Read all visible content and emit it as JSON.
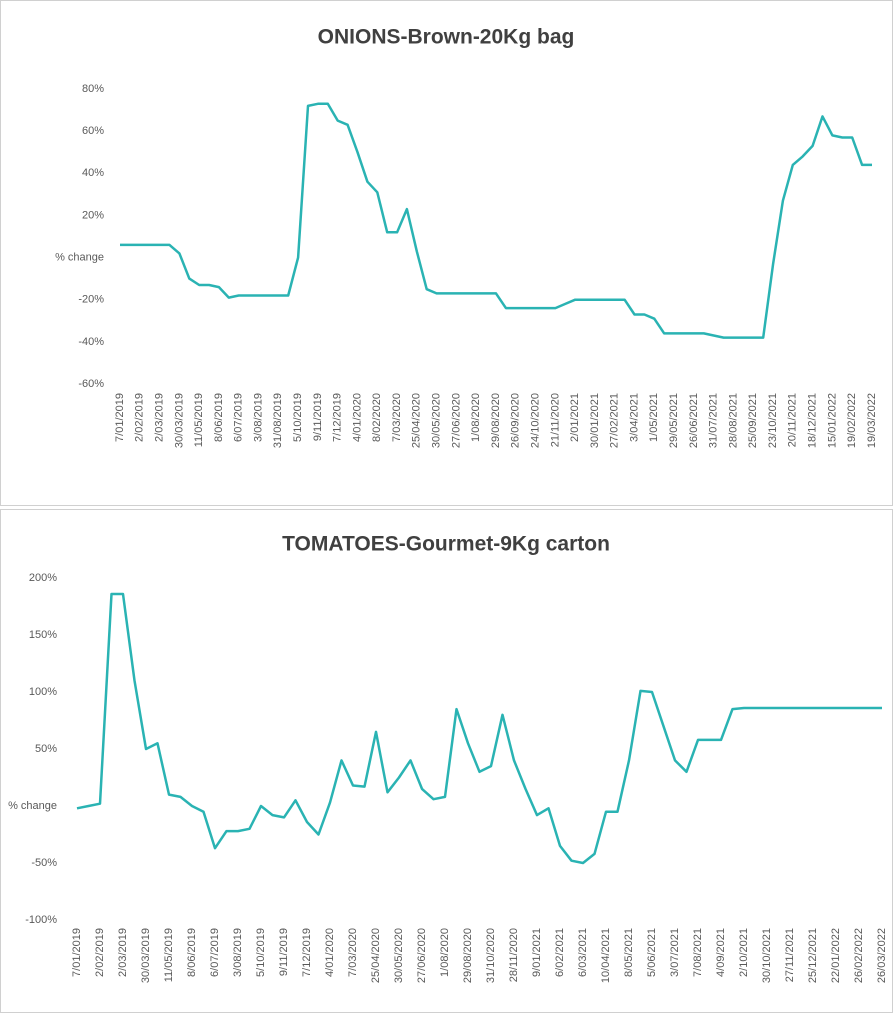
{
  "chart_data": [
    {
      "type": "line",
      "title": "ONIONS-Brown-20Kg bag",
      "color": "#2ab3b3",
      "ylim": [
        -60,
        80
      ],
      "yticks": [
        {
          "value": -60,
          "label": "-60%"
        },
        {
          "value": -40,
          "label": "-40%"
        },
        {
          "value": -20,
          "label": "-20%"
        },
        {
          "value": 0,
          "label": "% change"
        },
        {
          "value": 20,
          "label": "20%"
        },
        {
          "value": 40,
          "label": "40%"
        },
        {
          "value": 60,
          "label": "60%"
        },
        {
          "value": 80,
          "label": "80%"
        }
      ],
      "categories": [
        "7/01/2019",
        null,
        "2/02/2019",
        null,
        "2/03/2019",
        null,
        "30/03/2019",
        null,
        "11/05/2019",
        null,
        "8/06/2019",
        null,
        "6/07/2019",
        null,
        "3/08/2019",
        null,
        "31/08/2019",
        null,
        "5/10/2019",
        null,
        "9/11/2019",
        null,
        "7/12/2019",
        null,
        "4/01/2020",
        null,
        "8/02/2020",
        null,
        "7/03/2020",
        null,
        "25/04/2020",
        null,
        "30/05/2020",
        null,
        "27/06/2020",
        null,
        "1/08/2020",
        null,
        "29/08/2020",
        null,
        "26/09/2020",
        null,
        "24/10/2020",
        null,
        "21/11/2020",
        null,
        "2/01/2021",
        null,
        "30/01/2021",
        null,
        "27/02/2021",
        null,
        "3/04/2021",
        null,
        "1/05/2021",
        null,
        "29/05/2021",
        null,
        "26/06/2021",
        null,
        "31/07/2021",
        null,
        "28/08/2021",
        null,
        "25/09/2021",
        null,
        "23/10/2021",
        null,
        "20/11/2021",
        null,
        "18/12/2021",
        null,
        "15/01/2022",
        null,
        "19/02/2022",
        null,
        "19/03/2022"
      ],
      "values": [
        6,
        6,
        6,
        6,
        6,
        6,
        2,
        -10,
        -13,
        -13,
        -14,
        -19,
        -18,
        -18,
        -18,
        -18,
        -18,
        -18,
        0,
        72,
        73,
        73,
        65,
        63,
        50,
        36,
        31,
        12,
        12,
        23,
        3,
        -15,
        -17,
        -17,
        -17,
        -17,
        -17,
        -17,
        -17,
        -24,
        -24,
        -24,
        -24,
        -24,
        -24,
        -22,
        -20,
        -20,
        -20,
        -20,
        -20,
        -20,
        -27,
        -27,
        -29,
        -36,
        -36,
        -36,
        -36,
        -36,
        -37,
        -38,
        -38,
        -38,
        -38,
        -38,
        -3,
        27,
        44,
        48,
        53,
        67,
        58,
        57,
        57,
        44,
        44
      ]
    },
    {
      "type": "line",
      "title": "TOMATOES-Gourmet-9Kg carton",
      "color": "#2ab3b3",
      "ylim": [
        -100,
        200
      ],
      "yticks": [
        {
          "value": -100,
          "label": "-100%"
        },
        {
          "value": -50,
          "label": "-50%"
        },
        {
          "value": 0,
          "label": "% change"
        },
        {
          "value": 50,
          "label": "50%"
        },
        {
          "value": 100,
          "label": "100%"
        },
        {
          "value": 150,
          "label": "150%"
        },
        {
          "value": 200,
          "label": "200%"
        }
      ],
      "categories": [
        "7/01/2019",
        null,
        "2/02/2019",
        null,
        "2/03/2019",
        null,
        "30/03/2019",
        null,
        "11/05/2019",
        null,
        "8/06/2019",
        null,
        "6/07/2019",
        null,
        "3/08/2019",
        null,
        "5/10/2019",
        null,
        "9/11/2019",
        null,
        "7/12/2019",
        null,
        "4/01/2020",
        null,
        "7/03/2020",
        null,
        "25/04/2020",
        null,
        "30/05/2020",
        null,
        "27/06/2020",
        null,
        "1/08/2020",
        null,
        "29/08/2020",
        null,
        "31/10/2020",
        null,
        "28/11/2020",
        null,
        "9/01/2021",
        null,
        "6/02/2021",
        null,
        "6/03/2021",
        null,
        "10/04/2021",
        null,
        "8/05/2021",
        null,
        "5/06/2021",
        null,
        "3/07/2021",
        null,
        "7/08/2021",
        null,
        "4/09/2021",
        null,
        "2/10/2021",
        null,
        "30/10/2021",
        null,
        "27/11/2021",
        null,
        "25/12/2021",
        null,
        "22/01/2022",
        null,
        "26/02/2022",
        null,
        "26/03/2022"
      ],
      "values": [
        -2,
        0,
        2,
        186,
        186,
        110,
        50,
        55,
        10,
        8,
        0,
        -5,
        -37,
        -22,
        -22,
        -20,
        0,
        -8,
        -10,
        5,
        -14,
        -25,
        3,
        40,
        18,
        17,
        65,
        12,
        25,
        40,
        15,
        6,
        8,
        85,
        55,
        30,
        35,
        80,
        40,
        15,
        -8,
        -2,
        -35,
        -48,
        -50,
        -42,
        -5,
        -5,
        40,
        101,
        100,
        70,
        40,
        30,
        58,
        58,
        58,
        85,
        86,
        86,
        86,
        86,
        86,
        86,
        86,
        86,
        86,
        86,
        86,
        86,
        86
      ]
    }
  ]
}
